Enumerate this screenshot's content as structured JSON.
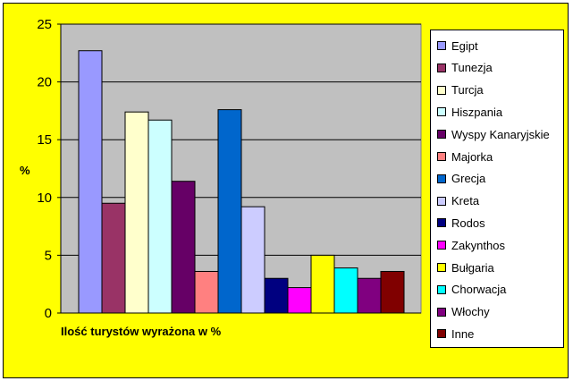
{
  "chart_data": {
    "type": "bar",
    "ylabel": "%",
    "xlabel": "Ilość turystów wyrażona w %",
    "ylim": [
      0,
      25
    ],
    "yticks": [
      "0",
      "5",
      "10",
      "15",
      "20",
      "25"
    ],
    "grid": true,
    "legend_position": "right",
    "series": [
      {
        "name": "Egipt",
        "value": 22.7,
        "color": "#9999ff"
      },
      {
        "name": "Tunezja",
        "value": 9.5,
        "color": "#993366"
      },
      {
        "name": "Turcja",
        "value": 17.4,
        "color": "#ffffcc"
      },
      {
        "name": "Hiszpania",
        "value": 16.7,
        "color": "#ccffff"
      },
      {
        "name": "Wyspy Kanaryjskie",
        "value": 11.4,
        "color": "#660066"
      },
      {
        "name": "Majorka",
        "value": 3.6,
        "color": "#ff8080"
      },
      {
        "name": "Grecja",
        "value": 17.6,
        "color": "#0066cc"
      },
      {
        "name": "Kreta",
        "value": 9.2,
        "color": "#ccccff"
      },
      {
        "name": "Rodos",
        "value": 3.0,
        "color": "#000080"
      },
      {
        "name": "Zakynthos",
        "value": 2.2,
        "color": "#ff00ff"
      },
      {
        "name": "Bułgaria",
        "value": 5.0,
        "color": "#ffff00"
      },
      {
        "name": "Chorwacja",
        "value": 3.9,
        "color": "#00ffff"
      },
      {
        "name": "Włochy",
        "value": 3.0,
        "color": "#800080"
      },
      {
        "name": "Inne",
        "value": 3.6,
        "color": "#800000"
      }
    ]
  },
  "colors": {
    "background": "#ffff00",
    "plot_area": "#c0c0c0",
    "gridline": "#000000"
  }
}
